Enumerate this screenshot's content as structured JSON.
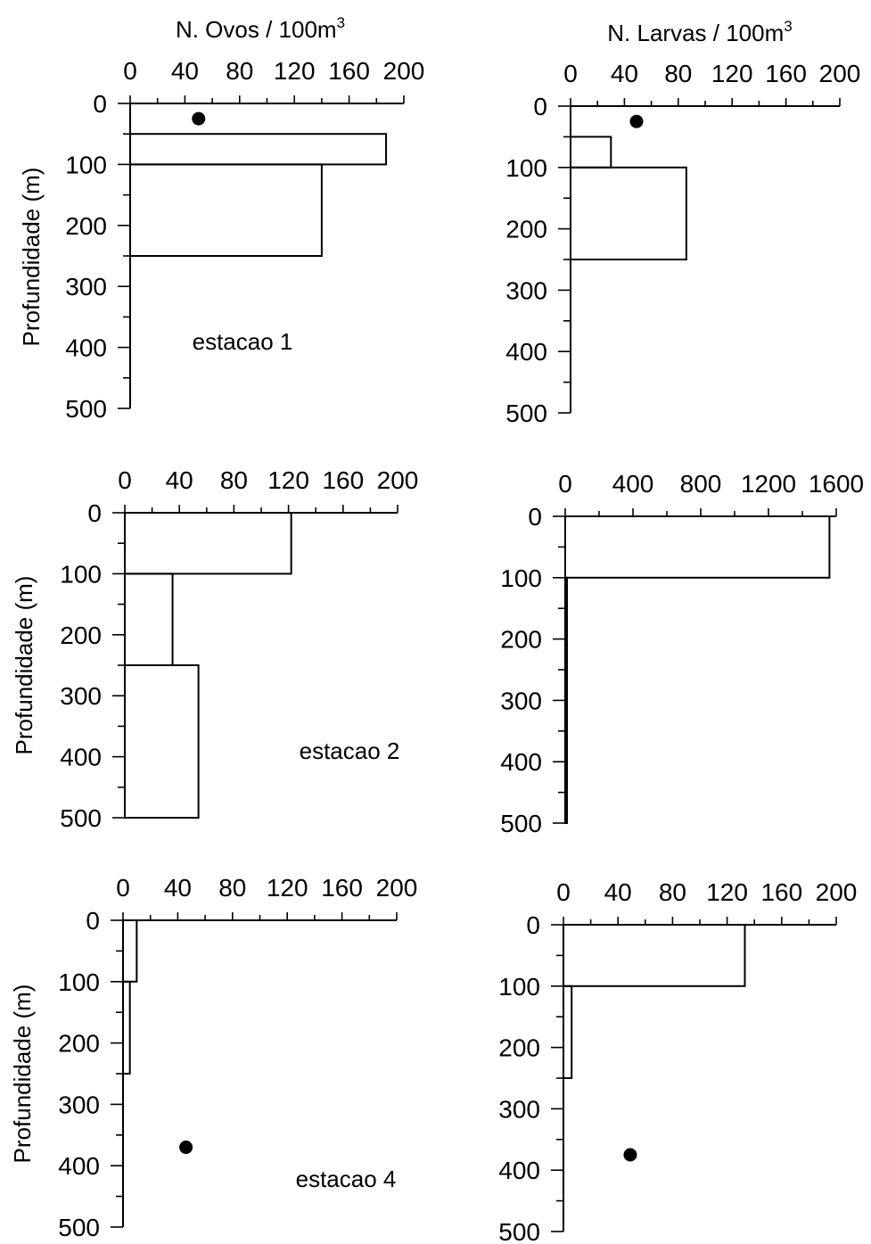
{
  "titles": {
    "ovos": "N. Ovos / 100m",
    "larvas": "N. Larvas / 100m",
    "superscript": "3"
  },
  "chart_data": [
    {
      "type": "bar",
      "orientation": "horizontal",
      "panel": "ovos-estacao-1",
      "station": "estacao 1",
      "xlabel": "N. Ovos / 100m3",
      "ylabel": "Profundidade (m)",
      "xlim": [
        0,
        200
      ],
      "ylim": [
        0,
        500
      ],
      "xticks": [
        "0",
        "40",
        "80",
        "120",
        "160",
        "200"
      ],
      "yticks": [
        "0",
        "100",
        "200",
        "300",
        "400",
        "500"
      ],
      "bars": [
        {
          "depth_from": 50,
          "depth_to": 100,
          "value": 187
        },
        {
          "depth_from": 100,
          "depth_to": 250,
          "value": 140
        }
      ],
      "markers": [
        {
          "x": 50,
          "y": 25
        }
      ]
    },
    {
      "type": "bar",
      "orientation": "horizontal",
      "panel": "larvas-estacao-1",
      "xlabel": "N. Larvas / 100m3",
      "xlim": [
        0,
        200
      ],
      "ylim": [
        0,
        500
      ],
      "xticks": [
        "0",
        "40",
        "80",
        "120",
        "160",
        "200"
      ],
      "yticks": [
        "0",
        "100",
        "200",
        "300",
        "400",
        "500"
      ],
      "bars": [
        {
          "depth_from": 50,
          "depth_to": 100,
          "value": 30
        },
        {
          "depth_from": 100,
          "depth_to": 250,
          "value": 86
        }
      ],
      "markers": [
        {
          "x": 49,
          "y": 25
        }
      ]
    },
    {
      "type": "bar",
      "orientation": "horizontal",
      "panel": "ovos-estacao-2",
      "station": "estacao 2",
      "ylabel": "Profundidade (m)",
      "xlim": [
        0,
        200
      ],
      "ylim": [
        0,
        500
      ],
      "xticks": [
        "0",
        "40",
        "80",
        "120",
        "160",
        "200"
      ],
      "yticks": [
        "0",
        "100",
        "200",
        "300",
        "400",
        "500"
      ],
      "bars": [
        {
          "depth_from": 0,
          "depth_to": 100,
          "value": 122
        },
        {
          "depth_from": 100,
          "depth_to": 250,
          "value": 35
        },
        {
          "depth_from": 250,
          "depth_to": 500,
          "value": 54
        }
      ],
      "markers": []
    },
    {
      "type": "bar",
      "orientation": "horizontal",
      "panel": "larvas-estacao-2",
      "xlim": [
        0,
        1600
      ],
      "ylim": [
        0,
        500
      ],
      "xticks": [
        "0",
        "400",
        "800",
        "1200",
        "1600"
      ],
      "yticks": [
        "0",
        "100",
        "200",
        "300",
        "400",
        "500"
      ],
      "bars": [
        {
          "depth_from": 0,
          "depth_to": 100,
          "value": 1560
        },
        {
          "depth_from": 100,
          "depth_to": 500,
          "value": 8
        }
      ],
      "markers": []
    },
    {
      "type": "bar",
      "orientation": "horizontal",
      "panel": "ovos-estacao-4",
      "station": "estacao 4",
      "ylabel": "Profundidade (m)",
      "xlim": [
        0,
        200
      ],
      "ylim": [
        0,
        500
      ],
      "xticks": [
        "0",
        "40",
        "80",
        "120",
        "160",
        "200"
      ],
      "yticks": [
        "0",
        "100",
        "200",
        "300",
        "400",
        "500"
      ],
      "bars": [
        {
          "depth_from": 0,
          "depth_to": 100,
          "value": 10
        },
        {
          "depth_from": 100,
          "depth_to": 250,
          "value": 5
        }
      ],
      "markers": [
        {
          "x": 46,
          "y": 370
        }
      ]
    },
    {
      "type": "bar",
      "orientation": "horizontal",
      "panel": "larvas-estacao-4",
      "xlim": [
        0,
        200
      ],
      "ylim": [
        0,
        500
      ],
      "xticks": [
        "0",
        "40",
        "80",
        "120",
        "160",
        "200"
      ],
      "yticks": [
        "0",
        "100",
        "200",
        "300",
        "400",
        "500"
      ],
      "bars": [
        {
          "depth_from": 0,
          "depth_to": 100,
          "value": 133
        },
        {
          "depth_from": 100,
          "depth_to": 250,
          "value": 6
        }
      ],
      "markers": [
        {
          "x": 49,
          "y": 375
        }
      ]
    }
  ]
}
